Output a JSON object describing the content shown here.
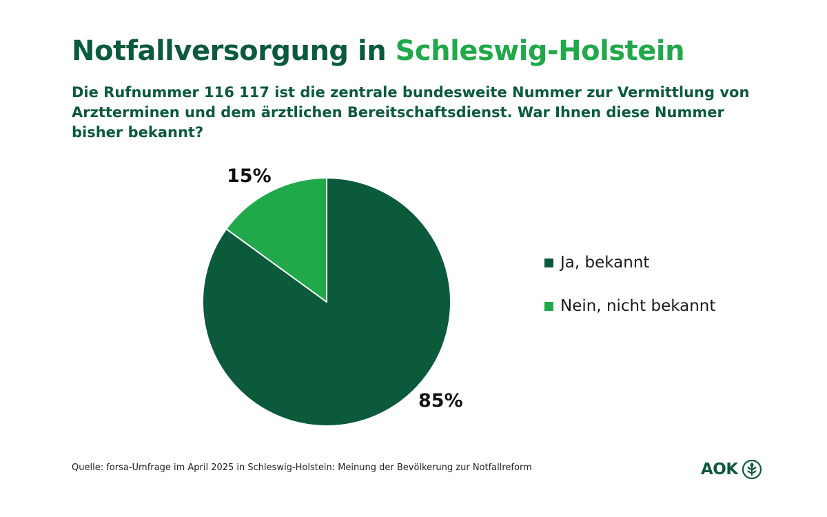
{
  "title": {
    "part1": "Notfallversorgung in ",
    "part2": "Schleswig-Holstein"
  },
  "subtitle": "Die Rufnummer 116 117 ist die zentrale bundesweite Nummer zur Vermittlung von Arztterminen und dem ärztlichen Bereitschaftsdienst. War Ihnen diese Nummer bisher bekannt?",
  "colors": {
    "dark_green": "#0b5a3c",
    "light_green": "#20a84a"
  },
  "chart_data": {
    "type": "pie",
    "slices": [
      {
        "label": "Ja, bekannt",
        "value": 85,
        "value_label": "85%",
        "color": "#0b5a3c"
      },
      {
        "label": "Nein, nicht bekannt",
        "value": 15,
        "value_label": "15%",
        "color": "#20a84a"
      }
    ],
    "legend_position": "right"
  },
  "source": "Quelle: forsa-Umfrage im April 2025 in Schleswig-Holstein: Meinung der Bevölkerung zur Notfallreform",
  "logo": {
    "text": "AOK",
    "icon": "aok-tree-logo-icon"
  }
}
